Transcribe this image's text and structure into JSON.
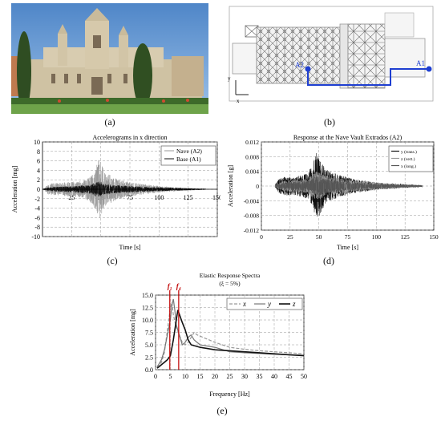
{
  "captions": {
    "a": "(a)",
    "b": "(b)",
    "c": "(c)",
    "d": "(d)",
    "e": "(e)"
  },
  "plan": {
    "label_a1": "A1",
    "label_a2": "A2",
    "axis_y": "y",
    "axis_x": "x"
  },
  "chart_data": [
    {
      "id": "c",
      "type": "line",
      "title": "Accelerograms in x direction",
      "xlabel": "Time [s]",
      "ylabel": "Acceleration [mg]",
      "xlim": [
        0,
        150
      ],
      "ylim": [
        -10,
        10
      ],
      "xticks": [
        "25",
        "50",
        "75",
        "100",
        "125",
        "150"
      ],
      "yticks": [
        "10",
        "8",
        "6",
        "4",
        "2",
        "0",
        "-2",
        "-4",
        "-6",
        "-8",
        "-10"
      ],
      "grid": true,
      "legend": "top-right",
      "series": [
        {
          "name": "Nave (A2)",
          "color": "#9a9a9a",
          "envelope": [
            [
              0,
              0.1
            ],
            [
              2,
              0.3
            ],
            [
              5,
              1.2
            ],
            [
              10,
              1.3
            ],
            [
              15,
              1.4
            ],
            [
              20,
              1.5
            ],
            [
              25,
              1.6
            ],
            [
              30,
              1.7
            ],
            [
              35,
              1.8
            ],
            [
              40,
              2.5
            ],
            [
              44,
              3.5
            ],
            [
              47,
              5.5
            ],
            [
              49,
              6.8
            ],
            [
              51,
              5.0
            ],
            [
              54,
              3.5
            ],
            [
              58,
              3.0
            ],
            [
              62,
              2.4
            ],
            [
              70,
              1.8
            ],
            [
              80,
              1.3
            ],
            [
              90,
              1.0
            ],
            [
              100,
              0.7
            ],
            [
              110,
              0.5
            ],
            [
              120,
              0.35
            ],
            [
              130,
              0.2
            ],
            [
              140,
              0.15
            ]
          ]
        },
        {
          "name": "Base (A1)",
          "color": "#111111",
          "envelope": [
            [
              0,
              0.05
            ],
            [
              5,
              0.4
            ],
            [
              20,
              0.6
            ],
            [
              40,
              0.9
            ],
            [
              46,
              1.5
            ],
            [
              49,
              1.7
            ],
            [
              52,
              1.2
            ],
            [
              60,
              0.9
            ],
            [
              80,
              0.6
            ],
            [
              100,
              0.4
            ],
            [
              120,
              0.25
            ],
            [
              140,
              0.1
            ]
          ]
        }
      ]
    },
    {
      "id": "d",
      "type": "line",
      "title": "Response at the Nave Vault Extrados (A2)",
      "xlabel": "Time [s]",
      "ylabel": "Acceleration [g]",
      "xlim": [
        0,
        150
      ],
      "ylim": [
        -0.012,
        0.012
      ],
      "xticks": [
        "0",
        "25",
        "50",
        "75",
        "100",
        "125",
        "150"
      ],
      "yticks": [
        "0.012",
        "0.008",
        "0.004",
        "0",
        "-0.004",
        "-0.008",
        "-0.012"
      ],
      "grid": true,
      "legend": "top-right",
      "series": [
        {
          "name": "y (trans.)",
          "color": "#111111",
          "envelope": [
            [
              12,
              0.0004
            ],
            [
              15,
              0.002
            ],
            [
              20,
              0.0025
            ],
            [
              30,
              0.0025
            ],
            [
              40,
              0.0035
            ],
            [
              45,
              0.006
            ],
            [
              48,
              0.0095
            ],
            [
              50,
              0.0085
            ],
            [
              55,
              0.005
            ],
            [
              60,
              0.004
            ],
            [
              70,
              0.0028
            ],
            [
              80,
              0.002
            ],
            [
              90,
              0.0015
            ],
            [
              100,
              0.001
            ],
            [
              110,
              0.0008
            ],
            [
              120,
              0.0006
            ],
            [
              130,
              0.0004
            ],
            [
              140,
              0.0002
            ]
          ]
        },
        {
          "name": "z (vert.)",
          "color": "#9a9a9a",
          "envelope": [
            [
              12,
              0.0003
            ],
            [
              20,
              0.0015
            ],
            [
              40,
              0.002
            ],
            [
              48,
              0.004
            ],
            [
              55,
              0.003
            ],
            [
              80,
              0.0015
            ],
            [
              120,
              0.0005
            ],
            [
              140,
              0.0002
            ]
          ]
        },
        {
          "name": "x (long.)",
          "color": "#555555",
          "envelope": [
            [
              12,
              0.0003
            ],
            [
              20,
              0.001
            ],
            [
              40,
              0.0015
            ],
            [
              48,
              0.003
            ],
            [
              55,
              0.002
            ],
            [
              80,
              0.001
            ],
            [
              120,
              0.0004
            ],
            [
              140,
              0.0002
            ]
          ]
        }
      ]
    },
    {
      "id": "e",
      "type": "line",
      "title": "Elastic Response Spectra",
      "subtitle": "(ξ = 5%)",
      "xlabel": "Frequency [Hz]",
      "ylabel": "Acceleration [mg]",
      "xlim": [
        0,
        50
      ],
      "ylim": [
        0,
        15
      ],
      "xticks": [
        "0",
        "5",
        "10",
        "15",
        "20",
        "25",
        "30",
        "35",
        "40",
        "45",
        "50"
      ],
      "yticks": [
        "0.0",
        "2.5",
        "5.0",
        "7.5",
        "10.0",
        "12.5",
        "15.0"
      ],
      "grid": true,
      "legend": "top-right",
      "markers": [
        {
          "label": "f₁",
          "x": 4.8,
          "color": "#c00000"
        },
        {
          "label": "f₄",
          "x": 7.8,
          "color": "#c00000"
        }
      ],
      "series": [
        {
          "name": "x",
          "color": "#9a9a9a",
          "dash": "4,2",
          "points": [
            [
              0.5,
              0.5
            ],
            [
              1,
              0.8
            ],
            [
              2,
              1.5
            ],
            [
              3,
              3.5
            ],
            [
              4,
              8
            ],
            [
              5,
              12.5
            ],
            [
              5.5,
              13.5
            ],
            [
              6,
              11
            ],
            [
              7,
              8.5
            ],
            [
              8,
              7
            ],
            [
              9,
              5.5
            ],
            [
              10,
              5
            ],
            [
              11,
              5.5
            ],
            [
              12,
              6.5
            ],
            [
              13,
              7.5
            ],
            [
              14,
              7
            ],
            [
              16,
              6.5
            ],
            [
              20,
              5.5
            ],
            [
              25,
              4.5
            ],
            [
              30,
              4.1
            ],
            [
              35,
              3.8
            ],
            [
              40,
              3.6
            ],
            [
              45,
              3.4
            ],
            [
              50,
              3.2
            ]
          ]
        },
        {
          "name": "y",
          "color": "#777777",
          "points": [
            [
              0.5,
              0.6
            ],
            [
              1,
              1
            ],
            [
              2,
              2
            ],
            [
              3,
              4
            ],
            [
              4,
              7
            ],
            [
              5,
              10
            ],
            [
              5.5,
              13
            ],
            [
              6,
              14.2
            ],
            [
              6.5,
              12
            ],
            [
              7,
              9
            ],
            [
              8,
              7
            ],
            [
              9,
              5
            ],
            [
              10,
              5.5
            ],
            [
              11,
              6.5
            ],
            [
              12,
              7
            ],
            [
              13,
              6
            ],
            [
              15,
              5
            ],
            [
              20,
              4.5
            ],
            [
              25,
              3.6
            ],
            [
              30,
              3.4
            ],
            [
              40,
              3.1
            ],
            [
              50,
              2.9
            ]
          ]
        },
        {
          "name": "z",
          "color": "#111111",
          "points": [
            [
              0.5,
              0.3
            ],
            [
              1,
              0.5
            ],
            [
              2,
              1
            ],
            [
              3,
              1.5
            ],
            [
              4,
              2
            ],
            [
              5,
              2.8
            ],
            [
              6,
              6
            ],
            [
              7,
              10
            ],
            [
              7.5,
              12
            ],
            [
              8,
              11.2
            ],
            [
              9,
              9.5
            ],
            [
              10,
              8
            ],
            [
              11,
              6
            ],
            [
              12,
              5
            ],
            [
              15,
              4.5
            ],
            [
              20,
              4
            ],
            [
              25,
              3.8
            ],
            [
              30,
              3.6
            ],
            [
              35,
              3.4
            ],
            [
              40,
              3.2
            ],
            [
              45,
              3.0
            ],
            [
              50,
              2.8
            ]
          ]
        }
      ]
    }
  ]
}
